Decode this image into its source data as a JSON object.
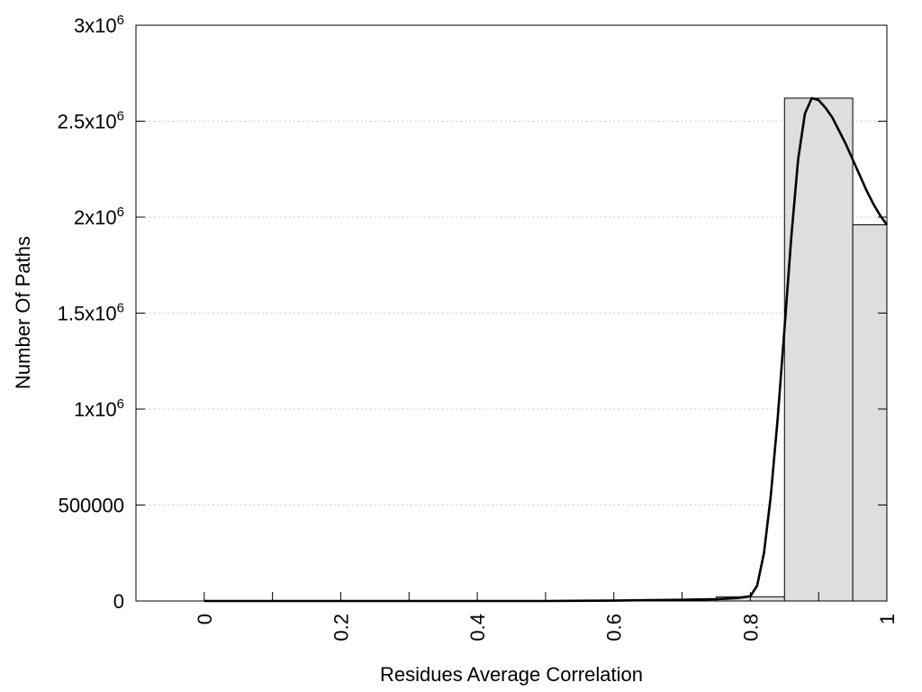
{
  "chart_data": {
    "type": "bar",
    "title": "",
    "xlabel": "Residues Average Correlation",
    "ylabel": "Number Of Paths",
    "xlim": [
      -0.1,
      1.0
    ],
    "ylim": [
      0,
      3000000
    ],
    "grid": true,
    "x_ticks": [
      {
        "value": 0,
        "label": "0"
      },
      {
        "value": 0.2,
        "label": "0.2"
      },
      {
        "value": 0.4,
        "label": "0.4"
      },
      {
        "value": 0.6,
        "label": "0.6"
      },
      {
        "value": 0.8,
        "label": "0.8"
      },
      {
        "value": 1.0,
        "label": "1"
      }
    ],
    "x_minor_ticks": [
      0.1,
      0.3,
      0.5,
      0.7,
      0.9
    ],
    "y_ticks": [
      {
        "value": 0,
        "label": "0",
        "sup": ""
      },
      {
        "value": 500000,
        "label": "500000",
        "sup": ""
      },
      {
        "value": 1000000,
        "label": "1x10",
        "sup": "6"
      },
      {
        "value": 1500000,
        "label": "1.5x10",
        "sup": "6"
      },
      {
        "value": 2000000,
        "label": "2x10",
        "sup": "6"
      },
      {
        "value": 2500000,
        "label": "2.5x10",
        "sup": "6"
      },
      {
        "value": 3000000,
        "label": "3x10",
        "sup": "6"
      }
    ],
    "bars": [
      {
        "x0": 0.75,
        "x1": 0.85,
        "value": 22000
      },
      {
        "x0": 0.85,
        "x1": 0.95,
        "value": 2620000
      },
      {
        "x0": 0.95,
        "x1": 1.0,
        "value": 1960000
      }
    ],
    "curve": {
      "x": [
        0,
        0.1,
        0.2,
        0.3,
        0.4,
        0.5,
        0.6,
        0.65,
        0.7,
        0.75,
        0.78,
        0.8,
        0.81,
        0.82,
        0.83,
        0.84,
        0.85,
        0.86,
        0.87,
        0.88,
        0.89,
        0.9,
        0.91,
        0.92,
        0.93,
        0.94,
        0.95,
        0.96,
        0.97,
        0.98,
        0.99,
        1.0
      ],
      "y": [
        0,
        0,
        0,
        0,
        0,
        0,
        2000,
        4000,
        6000,
        10000,
        15000,
        25000,
        80000,
        250000,
        550000,
        950000,
        1420000,
        1900000,
        2300000,
        2540000,
        2620000,
        2610000,
        2570000,
        2520000,
        2450000,
        2380000,
        2300000,
        2220000,
        2140000,
        2070000,
        2010000,
        1960000
      ]
    },
    "colors": {
      "bar_fill": "#dedede",
      "bar_stroke": "#000000",
      "curve": "#000000",
      "grid": "#cccccc"
    }
  }
}
